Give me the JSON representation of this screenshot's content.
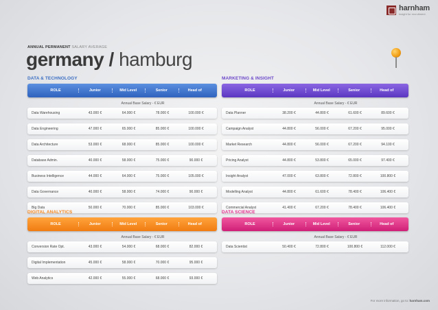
{
  "logo": {
    "name": "harnham",
    "tagline": "Insight for recruitment"
  },
  "header": {
    "kicker_bold": "ANNUAL PERMANENT",
    "kicker_light": "SALARY AVERAGE",
    "title_bold": "germany",
    "title_sep": "/",
    "title_light": "hamburg"
  },
  "columns": {
    "role": "ROLE",
    "junior": "Junior",
    "mid": "Mid Level",
    "senior": "Senior",
    "head": "Head of"
  },
  "subtitle": "Annual Base Salary - € EUR",
  "sections": {
    "tech": {
      "title": "DATA & TECHNOLOGY",
      "rows": [
        {
          "role": "Data Warehousing",
          "junior": "43.000 €",
          "mid": "64.000 €",
          "senior": "78.000 €",
          "head": "100.000 €"
        },
        {
          "role": "Data Engineering",
          "junior": "47.000 €",
          "mid": "65.000 €",
          "senior": "85.000 €",
          "head": "100.000 €"
        },
        {
          "role": "Data Architecture",
          "junior": "53.000 €",
          "mid": "68.000 €",
          "senior": "85.000 €",
          "head": "100.000 €"
        },
        {
          "role": "Database Admin.",
          "junior": "40.000 €",
          "mid": "58.000 €",
          "senior": "75.000 €",
          "head": "90.000 €"
        },
        {
          "role": "Business Intelligence",
          "junior": "44.000 €",
          "mid": "64.000 €",
          "senior": "75.000 €",
          "head": "105.000 €"
        },
        {
          "role": "Data Governance",
          "junior": "40.000 €",
          "mid": "58.000 €",
          "senior": "74.000 €",
          "head": "90.000 €"
        },
        {
          "role": "Big Data",
          "junior": "50.000 €",
          "mid": "70.000 €",
          "senior": "85.000 €",
          "head": "103.000 €"
        }
      ]
    },
    "marketing": {
      "title": "MARKETING & INSIGHT",
      "rows": [
        {
          "role": "Data Planner",
          "junior": "38.200 €",
          "mid": "44.800 €",
          "senior": "61.600 €",
          "head": "89.600 €"
        },
        {
          "role": "Campaign Analyst",
          "junior": "44.800 €",
          "mid": "56.000 €",
          "senior": "67.200 €",
          "head": "95.000 €"
        },
        {
          "role": "Market Research",
          "junior": "44.800 €",
          "mid": "56.000 €",
          "senior": "67.200 €",
          "head": "94.100 €"
        },
        {
          "role": "Pricing Analyst",
          "junior": "44.800 €",
          "mid": "53.800 €",
          "senior": "65.000 €",
          "head": "97.400 €"
        },
        {
          "role": "Insight Analyst",
          "junior": "47.000 €",
          "mid": "63.800 €",
          "senior": "72.800 €",
          "head": "100.800 €"
        },
        {
          "role": "Modelling Analyst",
          "junior": "44.800 €",
          "mid": "61.600 €",
          "senior": "78.400 €",
          "head": "106.400 €"
        },
        {
          "role": "Commercial Analyst",
          "junior": "41.400 €",
          "mid": "67.200 €",
          "senior": "78.400 €",
          "head": "106.400 €"
        }
      ]
    },
    "digital": {
      "title": "DIGITAL ANALYTICS",
      "rows": [
        {
          "role": "Conversion Rate Opt.",
          "junior": "43.000 €",
          "mid": "54.000 €",
          "senior": "68.000 €",
          "head": "82.000 €"
        },
        {
          "role": "Digital Implementation",
          "junior": "45.000 €",
          "mid": "58.000 €",
          "senior": "70.000 €",
          "head": "95.000 €"
        },
        {
          "role": "Web Analytics",
          "junior": "42.000 €",
          "mid": "55.000 €",
          "senior": "68.000 €",
          "head": "93.000 €"
        }
      ]
    },
    "science": {
      "title": "DATA SCIENCE",
      "rows": [
        {
          "role": "Data Scientist",
          "junior": "50.400 €",
          "mid": "72.800 €",
          "senior": "100.800 €",
          "head": "112.000 €"
        }
      ]
    }
  },
  "footer": {
    "text": "For more information, go to:",
    "link": "harnham.com"
  },
  "colors": {
    "tech": "#3b6ec3",
    "marketing": "#6b47c8",
    "digital": "#f2851c",
    "science": "#e0318b"
  }
}
